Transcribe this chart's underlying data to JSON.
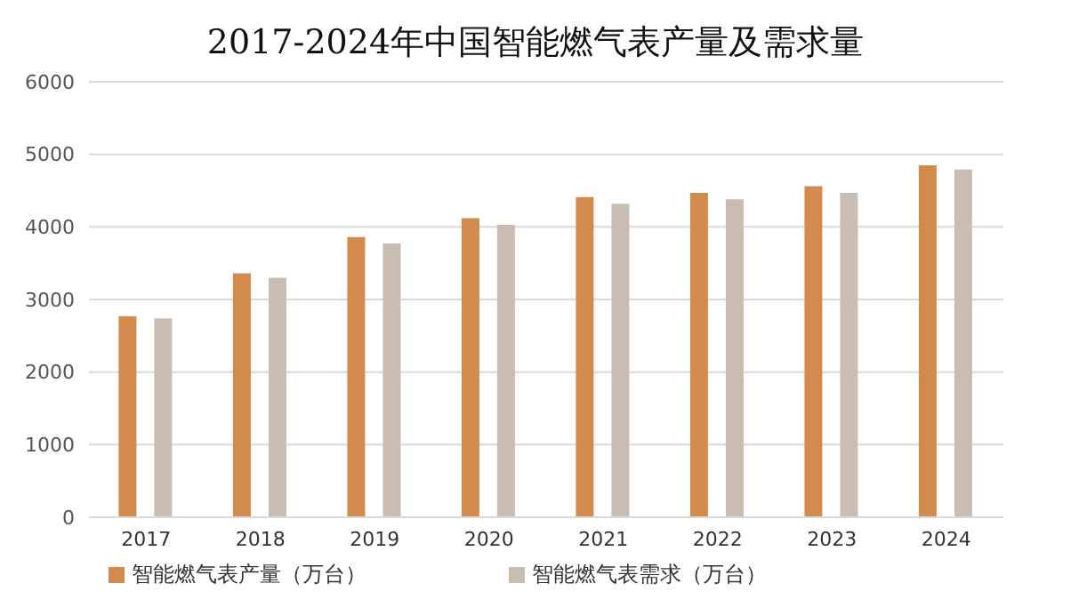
{
  "chart_data": {
    "type": "bar",
    "title": "2017-2024年中国智能燃气表产量及需求量",
    "categories": [
      "2017",
      "2018",
      "2019",
      "2020",
      "2021",
      "2022",
      "2023",
      "2024"
    ],
    "series": [
      {
        "name": "智能燃气表产量（万台）",
        "color": "#d38b4d",
        "values": [
          2770,
          3360,
          3860,
          4120,
          4410,
          4470,
          4560,
          4850
        ]
      },
      {
        "name": "智能燃气表需求（万台）",
        "color": "#c8bdb0",
        "values": [
          2740,
          3300,
          3770,
          4030,
          4320,
          4380,
          4470,
          4790
        ]
      }
    ],
    "ylim": [
      0,
      6000
    ],
    "yticks": [
      0,
      1000,
      2000,
      3000,
      4000,
      5000,
      6000
    ],
    "grid": "y",
    "legend": "bottom"
  }
}
